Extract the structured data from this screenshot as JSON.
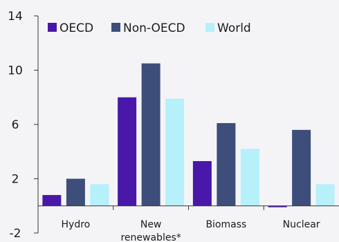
{
  "chart_data": {
    "type": "bar",
    "title": "",
    "xlabel": "",
    "ylabel": "",
    "ylim": [
      -2,
      14
    ],
    "yticks": [
      14,
      10,
      6,
      2,
      -2
    ],
    "ytick_labels": [
      "14",
      "10",
      "6",
      "2",
      "-2"
    ],
    "categories": [
      "Hydro",
      "New renewables*",
      "Biomass",
      "Nuclear"
    ],
    "category_lines": [
      [
        "Hydro"
      ],
      [
        "New",
        "renewables*"
      ],
      [
        "Biomass"
      ],
      [
        "Nuclear"
      ]
    ],
    "series": [
      {
        "name": "OECD",
        "color": "#4a18a8",
        "values": [
          0.8,
          8.0,
          3.3,
          -0.1
        ]
      },
      {
        "name": "Non-OECD",
        "color": "#3d4e7a",
        "values": [
          2.0,
          10.5,
          6.1,
          5.6
        ]
      },
      {
        "name": "World",
        "color": "#b5f0fb",
        "values": [
          1.6,
          7.9,
          4.2,
          1.6
        ]
      }
    ],
    "legend_position": "top-left",
    "grid": false
  }
}
